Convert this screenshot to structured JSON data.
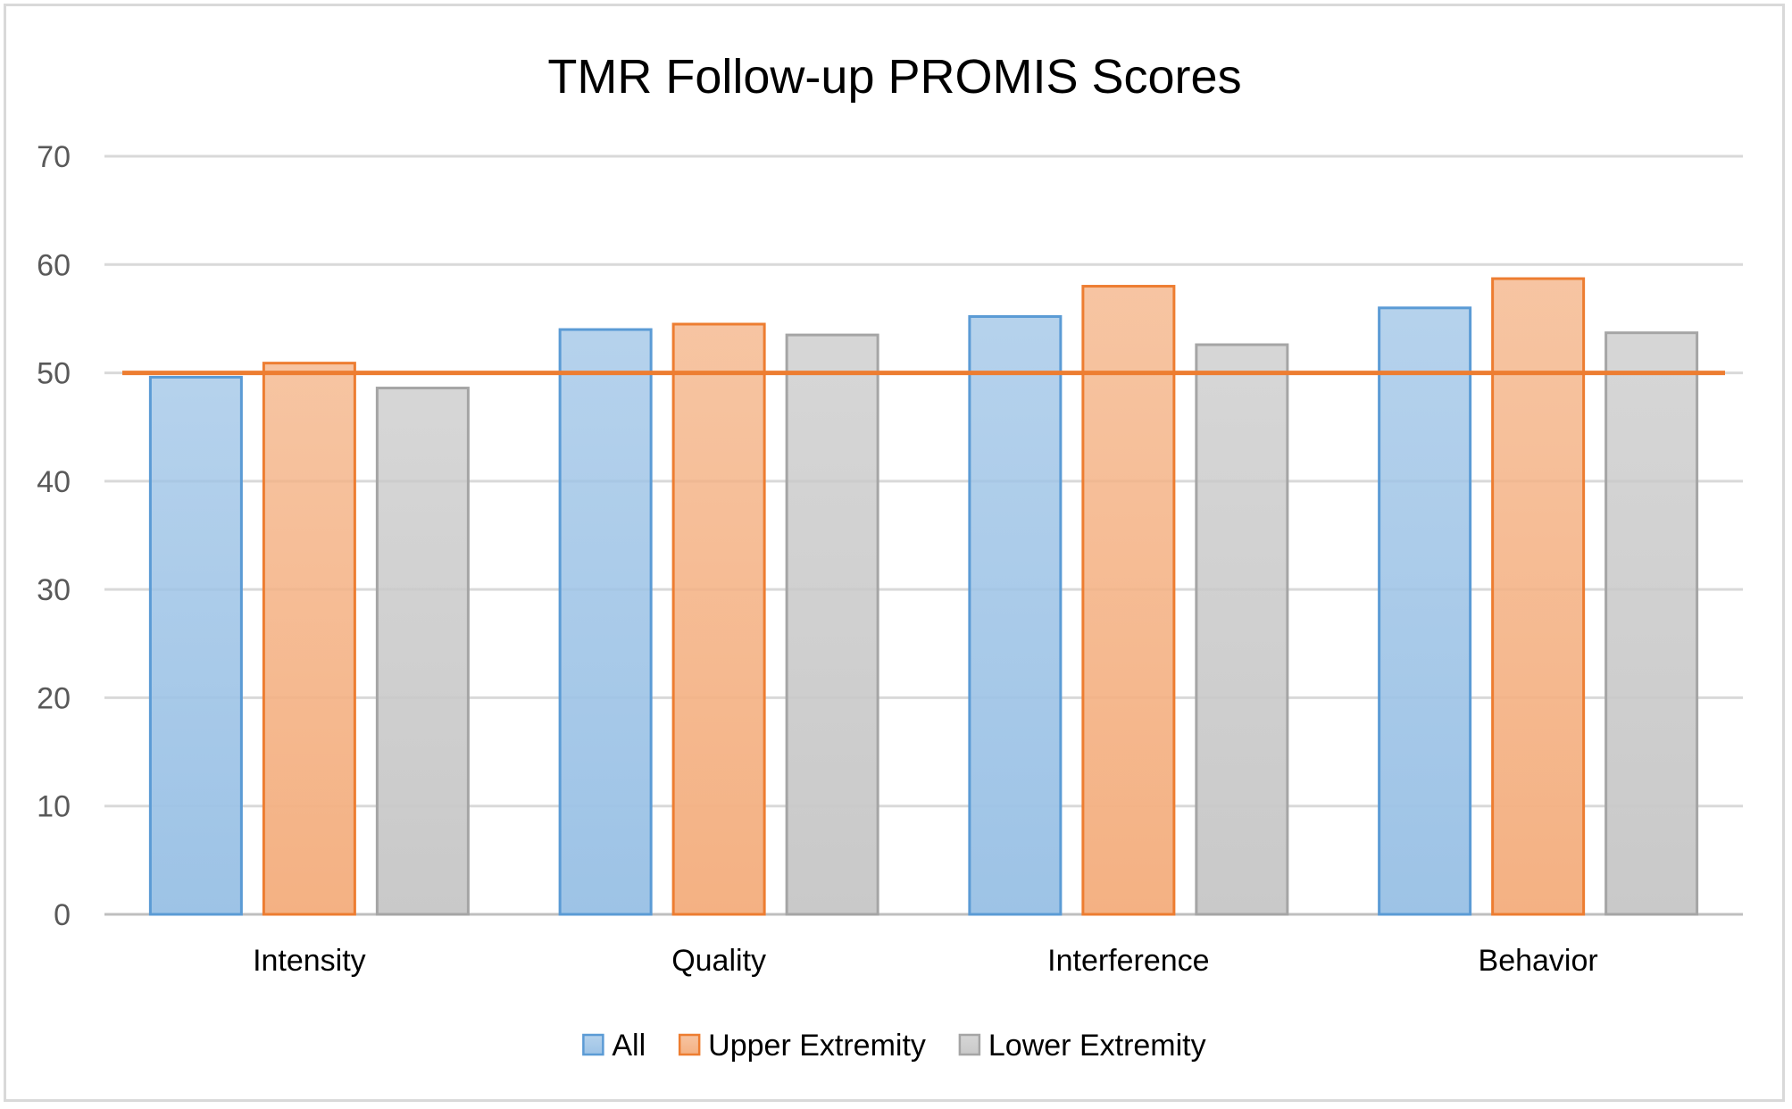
{
  "chart_data": {
    "type": "bar",
    "title": "TMR Follow-up PROMIS Scores",
    "xlabel": "",
    "ylabel": "",
    "ylim": [
      0,
      70
    ],
    "yticks": [
      0,
      10,
      20,
      30,
      40,
      50,
      60,
      70
    ],
    "grid": true,
    "legend_position": "bottom",
    "categories": [
      "Intensity",
      "Quality",
      "Interference",
      "Behavior"
    ],
    "series": [
      {
        "name": "All",
        "values": [
          49.6,
          54.0,
          55.2,
          56.0
        ],
        "color": "#9dc3e6",
        "border": "#5b9bd5"
      },
      {
        "name": "Upper Extremity",
        "values": [
          50.9,
          54.5,
          58.0,
          58.7
        ],
        "color": "#f4b183",
        "border": "#ed7d31"
      },
      {
        "name": "Lower Extremity",
        "values": [
          48.6,
          53.5,
          52.6,
          53.7
        ],
        "color": "#c9c9c9",
        "border": "#a5a5a5"
      }
    ],
    "reference_line": {
      "value": 50,
      "color": "#ed7d31"
    }
  }
}
